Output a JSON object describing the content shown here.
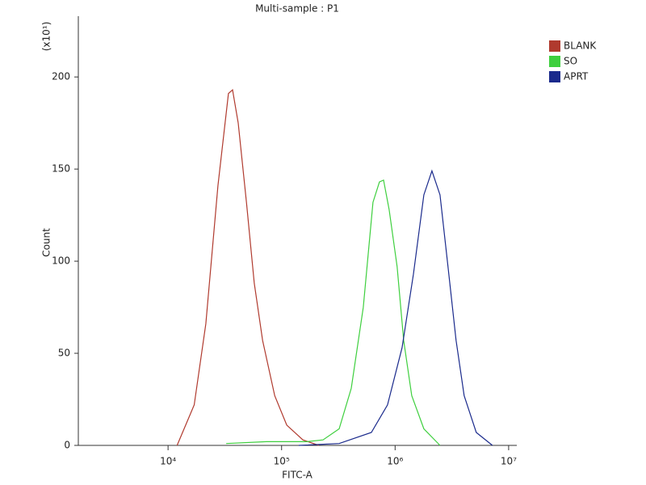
{
  "chart_data": {
    "type": "line",
    "title": "Multi-sample : P1",
    "xlabel": "FITC-A",
    "ylabel": "Count",
    "yunit": "(x10¹)",
    "xscale": "log",
    "xlim": [
      1620,
      11800000
    ],
    "ylim": [
      0,
      233
    ],
    "xticks": [
      {
        "value": 10000,
        "label": "10⁴"
      },
      {
        "value": 100000,
        "label": "10⁵"
      },
      {
        "value": 1000000,
        "label": "10⁶"
      },
      {
        "value": 10000000,
        "label": "10⁷"
      }
    ],
    "yticks": [
      0,
      50,
      100,
      150,
      200
    ],
    "grid": false,
    "legend": "top-right",
    "series": [
      {
        "name": "BLANK",
        "color": "#b03a2e",
        "x": [
          12000,
          17000,
          21500,
          27500,
          34000,
          37000,
          41500,
          49000,
          57500,
          68000,
          87000,
          111000,
          154000,
          213000
        ],
        "values": [
          0,
          22,
          66,
          141,
          191,
          193,
          175,
          132,
          88,
          57,
          27,
          11,
          3,
          0
        ]
      },
      {
        "name": "SO",
        "color": "#3ecf3e",
        "x": [
          32500,
          73600,
          167000,
          231600,
          321300,
          410600,
          524800,
          638400,
          727800,
          790700,
          885200,
          1042000,
          1189000,
          1400000,
          1790000,
          2484000
        ],
        "values": [
          1,
          2,
          2,
          3,
          9,
          31,
          75,
          132,
          143,
          144,
          128,
          97,
          57,
          27,
          9,
          0
        ]
      },
      {
        "name": "APRT",
        "color": "#1a2a8c",
        "x": [
          141600,
          321300,
          618000,
          857500,
          1151000,
          1449000,
          1790000,
          2109000,
          2484000,
          2925000,
          3445000,
          4057000,
          5188000,
          7196000
        ],
        "values": [
          0,
          1,
          7,
          22,
          53,
          93,
          136,
          149,
          136,
          97,
          57,
          27,
          7,
          0
        ]
      }
    ]
  }
}
